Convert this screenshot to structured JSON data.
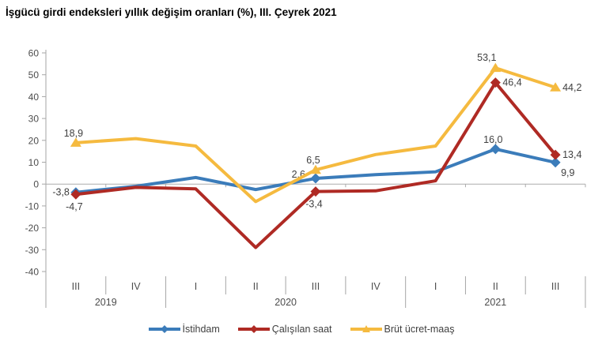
{
  "chart_data": {
    "type": "line",
    "title": "İşgücü girdi endeksleri yıllık değişim oranları (%), III. Çeyrek 2021",
    "categories": [
      "III",
      "IV",
      "I",
      "II",
      "III",
      "IV",
      "I",
      "II",
      "III"
    ],
    "year_groups": [
      {
        "label": "2019",
        "count": 2
      },
      {
        "label": "2020",
        "count": 4
      },
      {
        "label": "2021",
        "count": 3
      }
    ],
    "ylabel": "",
    "xlabel": "",
    "ylim": [
      -40,
      60
    ],
    "ytick_step": 10,
    "yticks": [
      60,
      50,
      40,
      30,
      20,
      10,
      0,
      -10,
      -20,
      -30,
      -40
    ],
    "grid": false,
    "legend_position": "bottom",
    "axis_color": "#a6a6a6",
    "zero_line_color": "#ababab",
    "series": [
      {
        "name": "İstihdam",
        "slug": "istihdam",
        "color": "#3b7cba",
        "marker": "diamond",
        "values": [
          -3.8,
          -1.0,
          3.0,
          -2.5,
          2.6,
          4.3,
          5.6,
          16.0,
          9.9
        ],
        "labels": [
          {
            "idx": 0,
            "text": "-3,8",
            "pos": "left"
          },
          {
            "idx": 4,
            "text": "2,6",
            "pos": "left-center"
          },
          {
            "idx": 7,
            "text": "16,0",
            "pos": "above"
          },
          {
            "idx": 8,
            "text": "9,9",
            "pos": "below-right"
          }
        ]
      },
      {
        "name": "Çalışılan saat",
        "slug": "calisilan-saat",
        "color": "#af2a24",
        "marker": "diamond",
        "values": [
          -4.7,
          -1.5,
          -2.2,
          -29.0,
          -3.4,
          -3.1,
          1.5,
          46.4,
          13.4
        ],
        "labels": [
          {
            "idx": 0,
            "text": "-4,7",
            "pos": "below"
          },
          {
            "idx": 4,
            "text": "-3,4",
            "pos": "below"
          },
          {
            "idx": 7,
            "text": "46,4",
            "pos": "right"
          },
          {
            "idx": 8,
            "text": "13,4",
            "pos": "right"
          }
        ]
      },
      {
        "name": "Brüt ücret-maaş",
        "slug": "brut-ucret-maas",
        "color": "#f5ba3f",
        "marker": "triangle",
        "values": [
          18.9,
          20.8,
          17.4,
          -8.0,
          6.5,
          13.5,
          17.4,
          53.1,
          44.2
        ],
        "labels": [
          {
            "idx": 0,
            "text": "18,9",
            "pos": "above"
          },
          {
            "idx": 4,
            "text": "6,5",
            "pos": "above"
          },
          {
            "idx": 7,
            "text": "53,1",
            "pos": "above-left"
          },
          {
            "idx": 8,
            "text": "44,2",
            "pos": "right"
          }
        ]
      }
    ]
  }
}
